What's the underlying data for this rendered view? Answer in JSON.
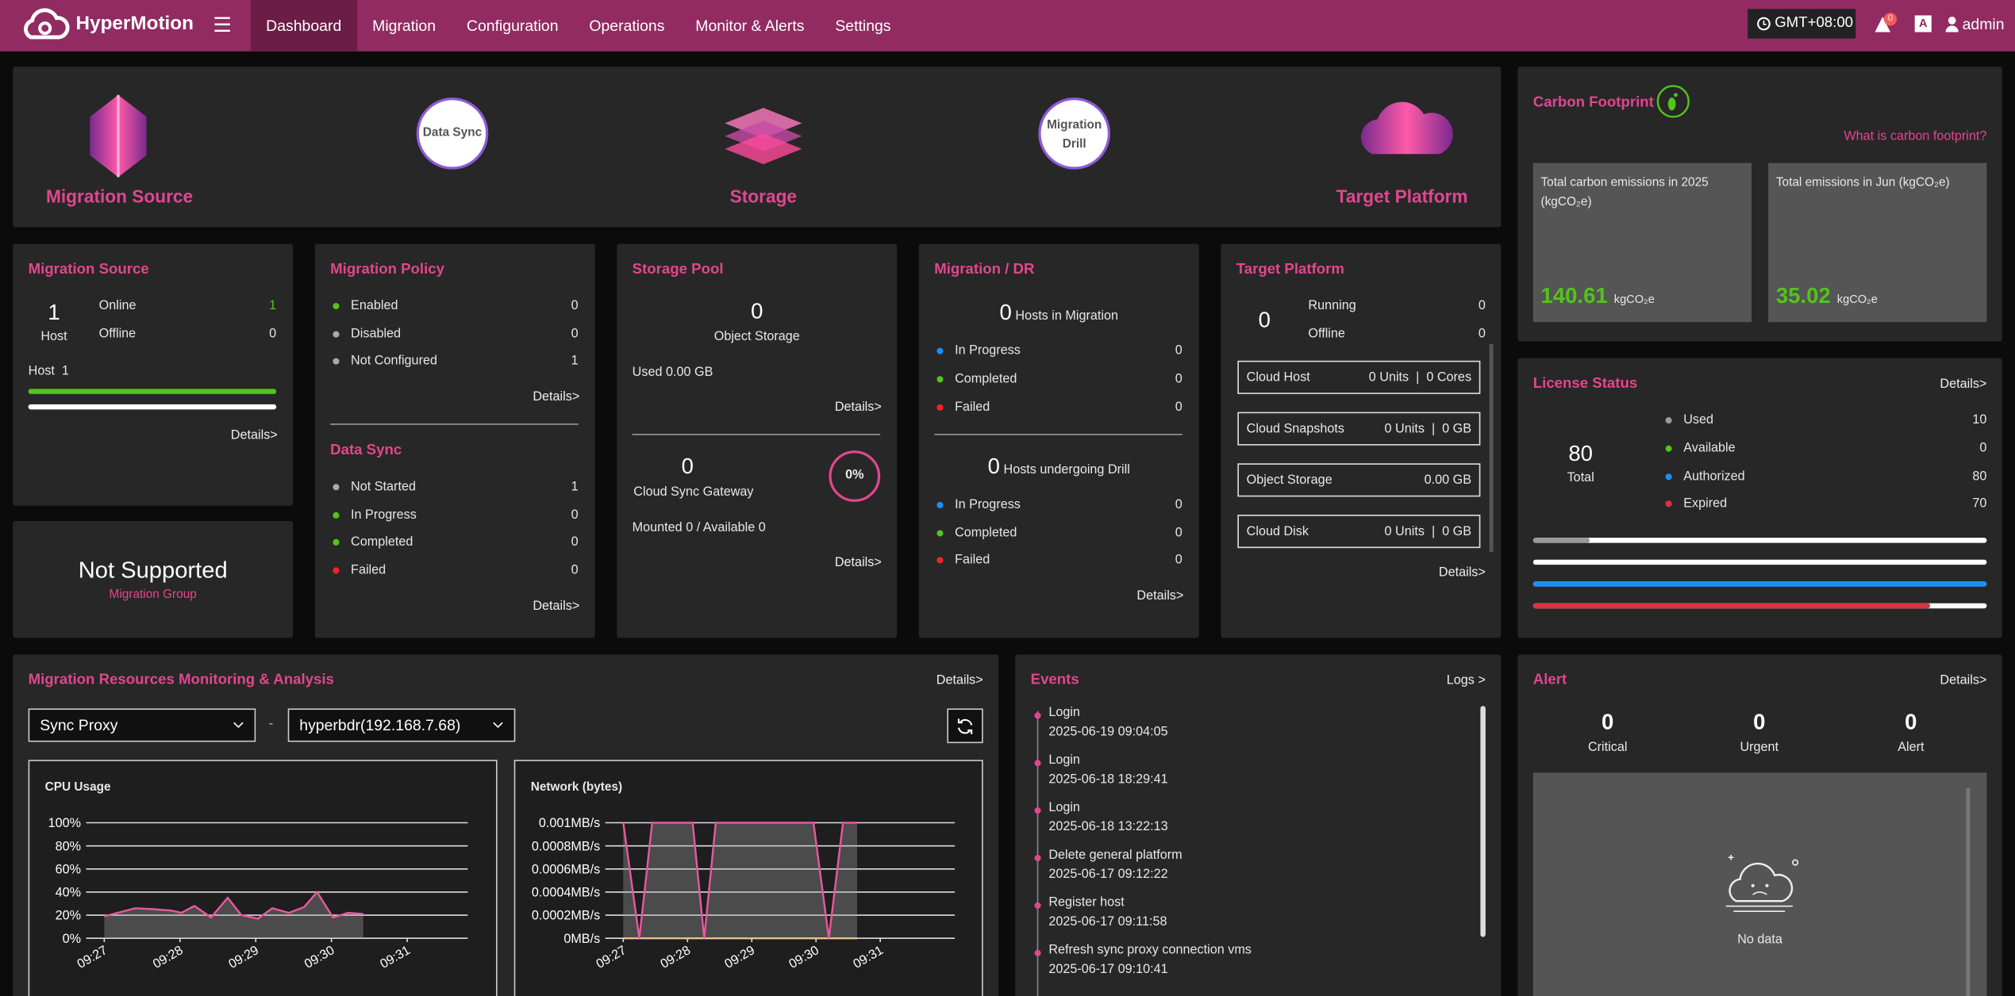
{
  "nav": {
    "brand": "HyperMotion",
    "items": [
      "Dashboard",
      "Migration",
      "Configuration",
      "Operations",
      "Monitor & Alerts",
      "Settings"
    ],
    "timezone": "GMT+08:00",
    "badge": 0,
    "lang": "A",
    "user": "admin"
  },
  "flow": {
    "source": "Migration Source",
    "sync": "Data Sync",
    "storage": "Storage",
    "drill": "Migration Drill",
    "target": "Target Platform"
  },
  "carbon": {
    "title": "Carbon Footprint",
    "link": "What is carbon footprint?",
    "cards": [
      {
        "label": "Total carbon emissions in 2025 (kgCO₂e)",
        "value": 140.61,
        "unit": "kgCO₂e"
      },
      {
        "label": "Total emissions in Jun (kgCO₂e)",
        "value": 35.02,
        "unit": "kgCO₂e"
      }
    ]
  },
  "msrc": {
    "title": "Migration Source",
    "count": 1,
    "count_label": "Host",
    "rows": [
      {
        "label": "Online",
        "value": 1,
        "value_color": "#52c41a"
      },
      {
        "label": "Offline",
        "value": 0
      }
    ],
    "bar_label": "Host",
    "bar_value": 1,
    "details": "Details>"
  },
  "mgroup": {
    "status": "Not Supported",
    "label": "Migration Group"
  },
  "policy": {
    "title": "Migration Policy",
    "rows": [
      {
        "label": "Enabled",
        "value": 0,
        "color": "#52c41a"
      },
      {
        "label": "Disabled",
        "value": 0,
        "color": "#aaaaaa"
      },
      {
        "label": "Not Configured",
        "value": 1,
        "color": "#aaaaaa"
      }
    ],
    "details": "Details>"
  },
  "sync": {
    "title": "Data Sync",
    "rows": [
      {
        "label": "Not Started",
        "value": 1,
        "color": "#aaaaaa"
      },
      {
        "label": "In Progress",
        "value": 0,
        "color": "#52c41a"
      },
      {
        "label": "Completed",
        "value": 0,
        "color": "#52c41a"
      },
      {
        "label": "Failed",
        "value": 0,
        "color": "#f5222d"
      }
    ],
    "details": "Details>"
  },
  "pool": {
    "title": "Storage Pool",
    "object_count": 0,
    "object_label": "Object Storage",
    "used": "Used 0.00 GB",
    "details": "Details>",
    "gateway_count": 0,
    "gateway_label": "Cloud Sync Gateway",
    "percent": "0%",
    "mounted": "Mounted 0 / Available 0",
    "details2": "Details>"
  },
  "dr": {
    "title": "Migration / DR",
    "migration_count": 0,
    "migration_label": "Hosts in Migration",
    "migration_rows": [
      {
        "label": "In Progress",
        "value": 0,
        "color": "#1890ff"
      },
      {
        "label": "Completed",
        "value": 0,
        "color": "#52c41a"
      },
      {
        "label": "Failed",
        "value": 0,
        "color": "#f5222d"
      }
    ],
    "drill_count": 0,
    "drill_label": "Hosts undergoing Drill",
    "drill_rows": [
      {
        "label": "In Progress",
        "value": 0,
        "color": "#1890ff"
      },
      {
        "label": "Completed",
        "value": 0,
        "color": "#52c41a"
      },
      {
        "label": "Failed",
        "value": 0,
        "color": "#f5222d"
      }
    ],
    "details": "Details>"
  },
  "target": {
    "title": "Target Platform",
    "count": 0,
    "rows": [
      {
        "label": "Running",
        "value": 0
      },
      {
        "label": "Offline",
        "value": 0
      }
    ],
    "boxes": [
      {
        "label": "Cloud Host",
        "value": "0 Units  |  0 Cores"
      },
      {
        "label": "Cloud Snapshots",
        "value": "0 Units  |  0 GB"
      },
      {
        "label": "Object Storage",
        "value": "0.00 GB"
      },
      {
        "label": "Cloud Disk",
        "value": "0 Units  |  0 GB"
      }
    ],
    "details": "Details>"
  },
  "license": {
    "title": "License Status",
    "details": "Details>",
    "total": 80,
    "total_label": "Total",
    "rows": [
      {
        "label": "Used",
        "value": 10,
        "color": "#999999"
      },
      {
        "label": "Available",
        "value": 0,
        "color": "#52c41a"
      },
      {
        "label": "Authorized",
        "value": 80,
        "color": "#1890ff"
      },
      {
        "label": "Expired",
        "value": 70,
        "color": "#d9363e"
      }
    ]
  },
  "monitor": {
    "title": "Migration Resources Monitoring & Analysis",
    "details": "Details>",
    "select1": "Sync Proxy",
    "separator": "-",
    "select2": "hyperbdr(192.168.7.68)",
    "cpu": {
      "type": "line",
      "title": "CPU Usage",
      "xlim": [
        -0.24,
        4.8
      ],
      "xticks": [
        {
          "value": 0,
          "label": "09:27"
        },
        {
          "value": 1,
          "label": "09:28"
        },
        {
          "value": 2,
          "label": "09:29"
        },
        {
          "value": 3,
          "label": "09:30"
        },
        {
          "value": 4,
          "label": "09:31"
        }
      ],
      "ylim": [
        0,
        100
      ],
      "yticks": [
        {
          "value": 0,
          "label": "0%"
        },
        {
          "value": 20,
          "label": "20%"
        },
        {
          "value": 40,
          "label": "40%"
        },
        {
          "value": 60,
          "label": "60%"
        },
        {
          "value": 80,
          "label": "80%"
        },
        {
          "value": 100,
          "label": "100%"
        }
      ],
      "grid": true,
      "series": [
        {
          "color": "#e8579f",
          "x": [
            0,
            0.41,
            0.68,
            0.88,
            1.02,
            1.19,
            1.41,
            1.63,
            1.81,
            2.03,
            2.22,
            2.44,
            2.64,
            2.81,
            3.02,
            3.22,
            3.42
          ],
          "values": [
            19,
            26,
            25,
            24,
            22,
            28,
            18,
            35,
            20,
            17,
            26,
            22,
            27,
            40,
            18,
            22,
            21
          ]
        }
      ]
    },
    "network": {
      "type": "line",
      "title": "Network (bytes)",
      "xlim": [
        -0.28,
        5.16
      ],
      "xticks": [
        {
          "value": 0,
          "label": "09:27"
        },
        {
          "value": 1,
          "label": "09:28"
        },
        {
          "value": 2,
          "label": "09:29"
        },
        {
          "value": 3,
          "label": "09:30"
        },
        {
          "value": 4,
          "label": "09:31"
        }
      ],
      "ylim": [
        0,
        0.001
      ],
      "yticks": [
        {
          "value": 0,
          "label": "0MB/s"
        },
        {
          "value": 0.0002,
          "label": "0.0002MB/s"
        },
        {
          "value": 0.0004,
          "label": "0.0004MB/s"
        },
        {
          "value": 0.0006,
          "label": "0.0006MB/s"
        },
        {
          "value": 0.0008,
          "label": "0.0008MB/s"
        },
        {
          "value": 0.001,
          "label": "0.001MB/s"
        }
      ],
      "grid": true,
      "series": [
        {
          "color": "#f5c58a",
          "x": [
            0,
            3.64
          ],
          "values": [
            0,
            0
          ]
        },
        {
          "color": "#e8579f",
          "x": [
            0,
            0.25,
            0.45,
            1.08,
            1.26,
            1.44,
            2.96,
            3.2,
            3.42,
            3.64
          ],
          "values": [
            0.001,
            0,
            0.001,
            0.001,
            0,
            0.001,
            0.001,
            0,
            0.001,
            0.001
          ]
        }
      ]
    }
  },
  "events": {
    "title": "Events",
    "logs": "Logs >",
    "items": [
      {
        "title": "Login",
        "time": "2025-06-19 09:04:05"
      },
      {
        "title": "Login",
        "time": "2025-06-18 18:29:41"
      },
      {
        "title": "Login",
        "time": "2025-06-18 13:22:13"
      },
      {
        "title": "Delete general platform",
        "time": "2025-06-17 09:12:22"
      },
      {
        "title": "Register host",
        "time": "2025-06-17 09:11:58"
      },
      {
        "title": "Refresh sync proxy connection vms",
        "time": "2025-06-17 09:10:41"
      }
    ]
  },
  "alert": {
    "title": "Alert",
    "details": "Details>",
    "counts": [
      {
        "label": "Critical",
        "value": 0
      },
      {
        "label": "Urgent",
        "value": 0
      },
      {
        "label": "Alert",
        "value": 0
      }
    ],
    "empty": "No data"
  }
}
